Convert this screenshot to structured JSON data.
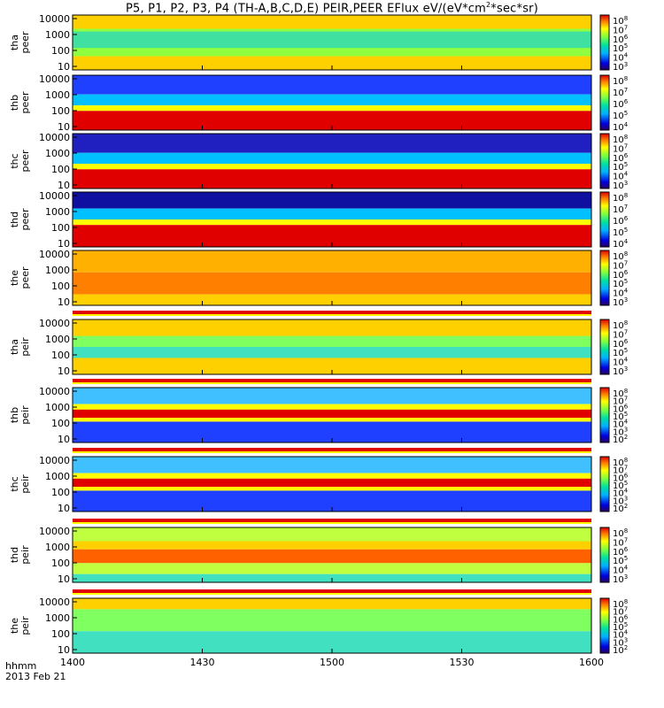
{
  "title_prefix": "P5, P1, P2, P3, P4 (TH-A,B,C,D,E) PEIR,PEER EFlux eV/(eV*cm",
  "title_sup": "2",
  "title_suffix": "*sec*sr)",
  "footer": {
    "label": "hhmm",
    "date": "2013 Feb 21"
  },
  "colors": {
    "red": "#e00000",
    "yellow": "#ffff00",
    "black": "#000000"
  },
  "chart_data": {
    "type": "heatmap",
    "x_ticks": [
      "1400",
      "1430",
      "1500",
      "1530",
      "1600"
    ],
    "xlim": [
      "1400",
      "1600"
    ],
    "y_scale": "log",
    "colorbar_scale": "log",
    "panels": [
      {
        "probe": "tha",
        "species": "peer",
        "ylim": [
          10,
          10000
        ],
        "y_ticks": [
          "10000",
          "1000",
          "100",
          "10"
        ],
        "colorbar_ticks": [
          "10^8",
          "10^7",
          "10^6",
          "10^5",
          "10^4",
          "10^3"
        ]
      },
      {
        "probe": "thb",
        "species": "peer",
        "ylim": [
          10,
          10000
        ],
        "y_ticks": [
          "10000",
          "1000",
          "100",
          "10"
        ],
        "colorbar_ticks": [
          "10^8",
          "10^7",
          "10^6",
          "10^5",
          "10^4"
        ]
      },
      {
        "probe": "thc",
        "species": "peer",
        "ylim": [
          10,
          10000
        ],
        "y_ticks": [
          "10000",
          "1000",
          "100",
          "10"
        ],
        "colorbar_ticks": [
          "10^8",
          "10^7",
          "10^6",
          "10^5",
          "10^4",
          "10^3"
        ]
      },
      {
        "probe": "thd",
        "species": "peer",
        "ylim": [
          10,
          10000
        ],
        "y_ticks": [
          "10000",
          "1000",
          "100",
          "10"
        ],
        "colorbar_ticks": [
          "10^8",
          "10^7",
          "10^6",
          "10^5",
          "10^4"
        ]
      },
      {
        "probe": "the",
        "species": "peer",
        "ylim": [
          10,
          10000
        ],
        "y_ticks": [
          "10000",
          "1000",
          "100",
          "10"
        ],
        "colorbar_ticks": [
          "10^8",
          "10^7",
          "10^6",
          "10^5",
          "10^4",
          "10^3"
        ]
      },
      {
        "probe": "tha",
        "species": "peir",
        "ylim": [
          10,
          10000
        ],
        "y_ticks": [
          "10000",
          "1000",
          "100",
          "10"
        ],
        "colorbar_ticks": [
          "10^8",
          "10^7",
          "10^6",
          "10^5",
          "10^4",
          "10^3"
        ]
      },
      {
        "probe": "thb",
        "species": "peir",
        "ylim": [
          10,
          10000
        ],
        "y_ticks": [
          "10000",
          "1000",
          "100",
          "10"
        ],
        "colorbar_ticks": [
          "10^8",
          "10^7",
          "10^6",
          "10^5",
          "10^4",
          "10^3",
          "10^2"
        ]
      },
      {
        "probe": "thc",
        "species": "peir",
        "ylim": [
          10,
          10000
        ],
        "y_ticks": [
          "10000",
          "1000",
          "100",
          "10"
        ],
        "colorbar_ticks": [
          "10^8",
          "10^7",
          "10^6",
          "10^5",
          "10^4",
          "10^3",
          "10^2"
        ]
      },
      {
        "probe": "thd",
        "species": "peir",
        "ylim": [
          10,
          10000
        ],
        "y_ticks": [
          "10000",
          "1000",
          "100",
          "10"
        ],
        "colorbar_ticks": [
          "10^8",
          "10^7",
          "10^6",
          "10^5",
          "10^4",
          "10^3"
        ]
      },
      {
        "probe": "the",
        "species": "peir",
        "ylim": [
          10,
          10000
        ],
        "y_ticks": [
          "10000",
          "1000",
          "100",
          "10"
        ],
        "colorbar_ticks": [
          "10^8",
          "10^7",
          "10^6",
          "10^5",
          "10^4",
          "10^3",
          "10^2"
        ]
      }
    ]
  }
}
